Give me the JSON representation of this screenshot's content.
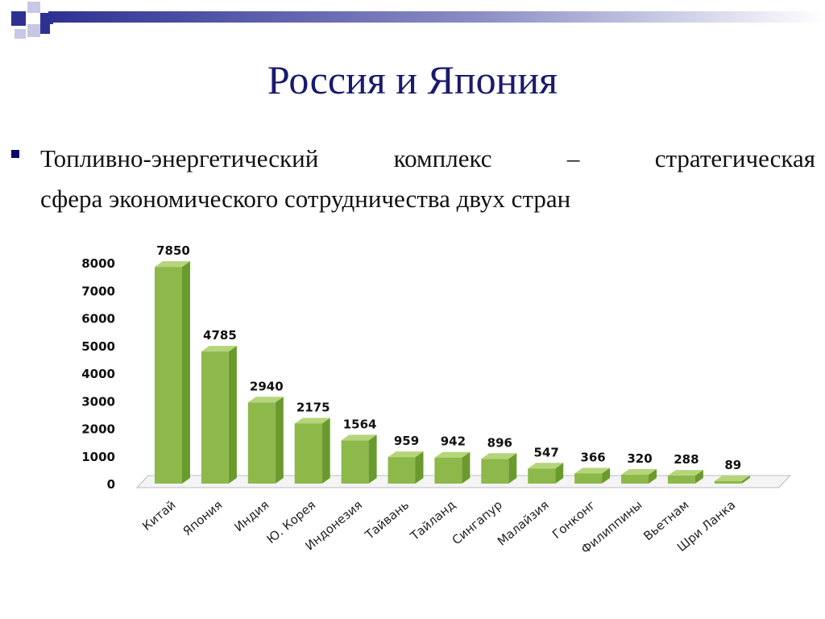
{
  "slide": {
    "title": "Россия и Япония",
    "bullet_line1": "Топливно-энергетический комплекс – стратегическая",
    "bullet_line2": "сфера экономического сотрудничества двух стран"
  },
  "colors": {
    "title": "#1a1a6e",
    "bar_front": "#8db84a",
    "bar_side": "#6a9a2e",
    "bar_top": "#b5d57a",
    "decor_dark": "#2e3192",
    "decor_light": "#b8b8dc"
  },
  "chart_data": {
    "type": "bar",
    "title": "",
    "xlabel": "",
    "ylabel": "",
    "ylim": [
      0,
      8000
    ],
    "yticks": [
      0,
      1000,
      2000,
      3000,
      4000,
      5000,
      6000,
      7000,
      8000
    ],
    "grid": false,
    "legend": "none",
    "categories": [
      "Китай",
      "Япония",
      "Индия",
      "Ю. Корея",
      "Индонезия",
      "Тайвань",
      "Тайланд",
      "Сингапур",
      "Малайзия",
      "Гонконг",
      "Филиппины",
      "Вьетнам",
      "Шри Ланка"
    ],
    "values": [
      7850,
      4785,
      2940,
      2175,
      1564,
      959,
      942,
      896,
      547,
      366,
      320,
      288,
      89
    ],
    "data_labels": [
      "7850",
      "4785",
      "2940",
      "2175",
      "1564",
      "959",
      "942",
      "896",
      "547",
      "366",
      "320",
      "288",
      "89"
    ]
  }
}
